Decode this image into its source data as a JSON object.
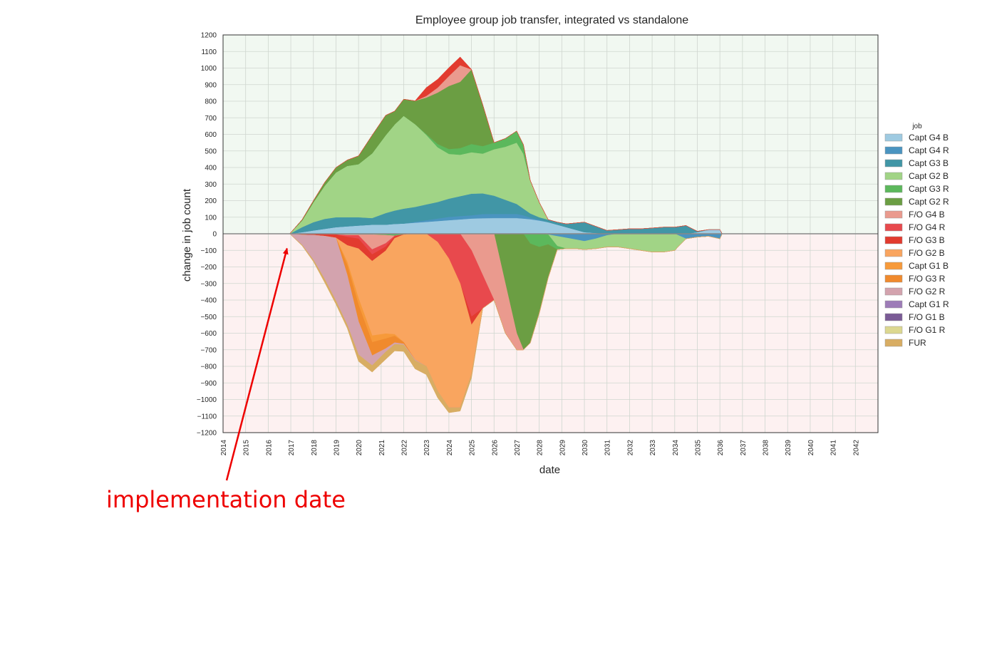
{
  "chart_data": {
    "type": "area",
    "title": "Employee group job transfer, integrated vs standalone",
    "xlabel": "date",
    "ylabel": "change in job count",
    "xlim": [
      2014,
      2043
    ],
    "ylim": [
      -1200,
      1200
    ],
    "x_ticks": [
      "2014",
      "2015",
      "2016",
      "2017",
      "2018",
      "2019",
      "2020",
      "2021",
      "2022",
      "2023",
      "2024",
      "2025",
      "2026",
      "2027",
      "2028",
      "2029",
      "2030",
      "2031",
      "2032",
      "2033",
      "2034",
      "2035",
      "2036",
      "2037",
      "2038",
      "2039",
      "2040",
      "2041",
      "2042"
    ],
    "y_ticks": [
      1200,
      1100,
      1000,
      900,
      800,
      700,
      600,
      500,
      400,
      300,
      200,
      100,
      0,
      -100,
      -200,
      -300,
      -400,
      -500,
      -600,
      -700,
      -800,
      -900,
      -1000,
      -1100,
      -1200
    ],
    "y_tick_labels": [
      "1200",
      "1100",
      "1000",
      "900",
      "800",
      "700",
      "600",
      "500",
      "400",
      "300",
      "200",
      "100",
      "0",
      "−100",
      "−200",
      "−300",
      "−400",
      "−500",
      "−600",
      "−700",
      "−800",
      "−900",
      "−1000",
      "−1100",
      "−1200"
    ],
    "grid": true,
    "positive_region_color": "#f1f8f1",
    "negative_region_color": "#fdf1f1",
    "legend": {
      "title": "job",
      "position": "right",
      "entries": [
        {
          "label": "Capt G4 B",
          "color": "#9ecae1"
        },
        {
          "label": "Capt G4 R",
          "color": "#4a94c0"
        },
        {
          "label": "Capt G3 B",
          "color": "#4196a6"
        },
        {
          "label": "Capt G2 B",
          "color": "#a1d486"
        },
        {
          "label": "Capt G3 R",
          "color": "#5cb85c"
        },
        {
          "label": "Capt G2 R",
          "color": "#6b9e43"
        },
        {
          "label": "F/O  G4 B",
          "color": "#ea9a8e"
        },
        {
          "label": "F/O  G4 R",
          "color": "#e8494d"
        },
        {
          "label": "F/O  G3 B",
          "color": "#e23b2f"
        },
        {
          "label": "F/O  G2 B",
          "color": "#f9a55f"
        },
        {
          "label": "Capt G1 B",
          "color": "#f79a3a"
        },
        {
          "label": "F/O  G3 R",
          "color": "#f08a2d"
        },
        {
          "label": "F/O  G2 R",
          "color": "#d3a3ae"
        },
        {
          "label": "Capt G1 R",
          "color": "#9d7cb8"
        },
        {
          "label": "F/O  G1 B",
          "color": "#7a5b96"
        },
        {
          "label": "F/O  G1 R",
          "color": "#dcd890"
        },
        {
          "label": "FUR",
          "color": "#d8ad63"
        }
      ]
    },
    "x": [
      2016.95,
      2017.5,
      2018,
      2018.5,
      2019,
      2019.5,
      2020,
      2020.6,
      2021.2,
      2021.6,
      2022,
      2022.5,
      2023,
      2023.5,
      2024,
      2024.5,
      2025,
      2025.5,
      2026,
      2026.5,
      2027,
      2027.3,
      2027.6,
      2028,
      2028.4,
      2028.8,
      2029.2,
      2029.6,
      2030,
      2030.5,
      2031,
      2031.5,
      2032,
      2032.5,
      2033,
      2033.5,
      2034,
      2034.5,
      2035,
      2035.5,
      2036,
      2036.1
    ],
    "series": [
      {
        "name": "Capt G4 B",
        "values": [
          0,
          10,
          20,
          30,
          40,
          45,
          50,
          55,
          55,
          60,
          62,
          67,
          72,
          77,
          82,
          87,
          92,
          94,
          95,
          95,
          95,
          92,
          88,
          80,
          70,
          55,
          40,
          25,
          10,
          5,
          0,
          0,
          0,
          0,
          0,
          0,
          0,
          0,
          10,
          25,
          25,
          0
        ]
      },
      {
        "name": "Capt G4 R",
        "values": [
          0,
          -2,
          -3,
          -4,
          -5,
          -5,
          -5,
          -5,
          -3,
          -2,
          0,
          5,
          10,
          15,
          20,
          20,
          20,
          25,
          25,
          25,
          25,
          20,
          10,
          5,
          -5,
          -15,
          -25,
          -35,
          -45,
          -30,
          -10,
          0,
          0,
          0,
          0,
          0,
          0,
          -30,
          -20,
          -15,
          -30,
          0
        ]
      },
      {
        "name": "Capt G3 B",
        "values": [
          0,
          30,
          50,
          60,
          60,
          55,
          50,
          40,
          70,
          80,
          90,
          90,
          95,
          100,
          110,
          120,
          130,
          125,
          110,
          85,
          60,
          40,
          25,
          15,
          15,
          15,
          20,
          40,
          60,
          40,
          20,
          25,
          30,
          30,
          35,
          40,
          40,
          50,
          5,
          0,
          0,
          0
        ]
      },
      {
        "name": "Capt G2 B",
        "values": [
          0,
          40,
          120,
          200,
          270,
          310,
          320,
          390,
          470,
          520,
          560,
          500,
          420,
          330,
          270,
          250,
          250,
          240,
          280,
          320,
          370,
          330,
          200,
          90,
          0,
          -60,
          -65,
          -55,
          -50,
          -60,
          -70,
          -80,
          -90,
          -100,
          -110,
          -110,
          -100,
          0,
          0,
          0,
          0,
          0
        ]
      },
      {
        "name": "Capt G3 R",
        "values": [
          0,
          0,
          0,
          0,
          0,
          0,
          0,
          0,
          -5,
          -10,
          -5,
          0,
          5,
          20,
          30,
          40,
          50,
          45,
          40,
          50,
          70,
          55,
          -60,
          -80,
          -60,
          -20,
          0,
          0,
          0,
          0,
          0,
          0,
          0,
          0,
          0,
          0,
          0,
          0,
          0,
          0,
          0,
          0
        ]
      },
      {
        "name": "Capt G2 R",
        "values": [
          0,
          5,
          10,
          20,
          30,
          35,
          50,
          110,
          120,
          80,
          100,
          140,
          220,
          310,
          380,
          400,
          450,
          250,
          0,
          -300,
          -600,
          -700,
          -600,
          -400,
          -200,
          0,
          0,
          0,
          0,
          0,
          0,
          0,
          0,
          0,
          0,
          0,
          0,
          0,
          0,
          0,
          0,
          0
        ]
      },
      {
        "name": "F/O  G4 B",
        "values": [
          0,
          0,
          0,
          0,
          0,
          -5,
          -5,
          -90,
          -50,
          0,
          0,
          0,
          10,
          30,
          60,
          100,
          -100,
          -250,
          -400,
          -300,
          -100,
          0,
          0,
          0,
          0,
          0,
          0,
          0,
          0,
          0,
          0,
          0,
          0,
          0,
          0,
          0,
          0,
          0,
          0,
          0,
          0,
          0
        ]
      },
      {
        "name": "F/O  G4 R",
        "values": [
          0,
          0,
          0,
          0,
          0,
          -10,
          -20,
          -30,
          -20,
          -5,
          0,
          0,
          0,
          -50,
          -150,
          -300,
          -400,
          -200,
          0,
          0,
          0,
          0,
          0,
          0,
          0,
          0,
          0,
          0,
          0,
          0,
          0,
          0,
          0,
          0,
          0,
          0,
          0,
          0,
          0,
          0,
          0,
          0
        ]
      },
      {
        "name": "F/O  G3 B",
        "values": [
          0,
          -5,
          -5,
          -10,
          -20,
          -50,
          -60,
          -40,
          -25,
          -10,
          0,
          0,
          50,
          50,
          50,
          50,
          -50,
          0,
          0,
          0,
          0,
          0,
          0,
          0,
          0,
          0,
          0,
          0,
          0,
          0,
          0,
          0,
          0,
          0,
          0,
          0,
          0,
          0,
          0,
          0,
          0,
          0
        ]
      },
      {
        "name": "F/O  G2 B",
        "values": [
          0,
          0,
          0,
          0,
          0,
          -100,
          -300,
          -450,
          -500,
          -580,
          -650,
          -760,
          -800,
          -900,
          -900,
          -750,
          -300,
          0,
          0,
          0,
          0,
          0,
          0,
          0,
          0,
          0,
          0,
          0,
          0,
          0,
          0,
          0,
          0,
          0,
          0,
          0,
          0,
          0,
          0,
          0,
          0,
          0
        ]
      },
      {
        "name": "Capt G1 B",
        "values": [
          0,
          0,
          0,
          0,
          0,
          -20,
          -40,
          -40,
          -30,
          -10,
          0,
          0,
          0,
          0,
          0,
          0,
          0,
          0,
          0,
          0,
          0,
          0,
          0,
          0,
          0,
          0,
          0,
          0,
          0,
          0,
          0,
          0,
          0,
          0,
          0,
          0,
          0,
          0,
          0,
          0,
          0,
          0
        ]
      },
      {
        "name": "F/O  G3 R",
        "values": [
          0,
          0,
          0,
          0,
          0,
          -60,
          -100,
          -80,
          -60,
          -40,
          -10,
          0,
          0,
          0,
          0,
          0,
          0,
          0,
          0,
          0,
          0,
          0,
          0,
          0,
          0,
          0,
          0,
          0,
          0,
          0,
          0,
          0,
          0,
          0,
          0,
          0,
          0,
          0,
          0,
          0,
          0,
          0
        ]
      },
      {
        "name": "F/O  G2 R",
        "values": [
          0,
          -60,
          -150,
          -260,
          -380,
          -300,
          -200,
          -60,
          -20,
          -10,
          -5,
          -5,
          0,
          0,
          0,
          0,
          0,
          0,
          0,
          0,
          0,
          0,
          0,
          0,
          0,
          0,
          0,
          0,
          0,
          0,
          0,
          0,
          0,
          0,
          0,
          0,
          0,
          0,
          0,
          0,
          0,
          0
        ]
      },
      {
        "name": "Capt G1 R",
        "values": [
          0,
          0,
          0,
          0,
          0,
          0,
          0,
          0,
          0,
          0,
          0,
          0,
          0,
          0,
          0,
          0,
          0,
          0,
          0,
          0,
          0,
          0,
          0,
          0,
          0,
          0,
          0,
          0,
          0,
          0,
          0,
          0,
          0,
          0,
          0,
          0,
          0,
          0,
          0,
          0,
          0,
          0
        ]
      },
      {
        "name": "F/O  G1 B",
        "values": [
          0,
          0,
          0,
          0,
          0,
          0,
          0,
          0,
          0,
          0,
          0,
          0,
          0,
          0,
          0,
          0,
          0,
          0,
          0,
          0,
          0,
          0,
          0,
          0,
          0,
          0,
          0,
          0,
          0,
          0,
          0,
          0,
          0,
          0,
          0,
          0,
          0,
          0,
          0,
          0,
          0,
          0
        ]
      },
      {
        "name": "F/O  G1 R",
        "values": [
          0,
          0,
          0,
          0,
          0,
          0,
          0,
          0,
          0,
          0,
          0,
          0,
          0,
          0,
          0,
          0,
          0,
          0,
          0,
          0,
          0,
          0,
          0,
          0,
          0,
          0,
          0,
          0,
          0,
          0,
          0,
          0,
          0,
          0,
          0,
          0,
          0,
          0,
          0,
          0,
          0,
          0
        ]
      },
      {
        "name": "FUR",
        "values": [
          0,
          -5,
          -10,
          -20,
          -20,
          -20,
          -40,
          -40,
          -45,
          -40,
          -40,
          -50,
          -50,
          -40,
          -30,
          -20,
          -20,
          0,
          0,
          0,
          0,
          0,
          0,
          0,
          0,
          0,
          0,
          0,
          0,
          0,
          0,
          0,
          0,
          0,
          0,
          0,
          0,
          0,
          0,
          0,
          0,
          0
        ]
      }
    ],
    "annotation": {
      "text": "implementation date",
      "points_to_x": 2016.8,
      "points_to_y": -80
    }
  }
}
